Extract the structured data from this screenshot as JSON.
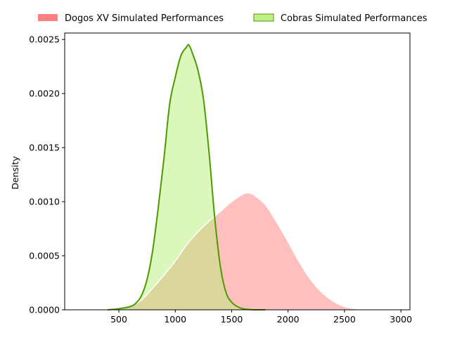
{
  "chart_data": {
    "type": "area",
    "title": "",
    "xlabel": "",
    "ylabel": "Density",
    "xlim": [
      20,
      3080
    ],
    "ylim": [
      0,
      0.00256
    ],
    "x_ticks": [
      500,
      1000,
      1500,
      2000,
      2500,
      3000
    ],
    "y_ticks": [
      0.0,
      0.0005,
      0.001,
      0.0015,
      0.002,
      0.0025
    ],
    "x_tick_labels": [
      "500",
      "1000",
      "1500",
      "2000",
      "2500",
      "3000"
    ],
    "y_tick_labels": [
      "0.0000",
      "0.0005",
      "0.0010",
      "0.0015",
      "0.0020",
      "0.0025"
    ],
    "grid": false,
    "legend_position": "top, outside plot",
    "series": [
      {
        "name": "Dogos XV Simulated Performances",
        "fill_color": "#ff8080",
        "fill_opacity": 0.5,
        "line_color": "#ffffff",
        "x": [
          350,
          500,
          600,
          700,
          800,
          900,
          1000,
          1100,
          1200,
          1300,
          1400,
          1500,
          1600,
          1650,
          1700,
          1800,
          1900,
          2000,
          2100,
          2200,
          2300,
          2400,
          2500,
          2600,
          2700
        ],
        "y": [
          0.0,
          1e-05,
          3e-05,
          9e-05,
          0.0002,
          0.00032,
          0.00045,
          0.0006,
          0.00072,
          0.00082,
          0.00091,
          0.001,
          0.00107,
          0.00108,
          0.00106,
          0.00097,
          0.00081,
          0.00063,
          0.00044,
          0.00028,
          0.00016,
          8e-05,
          3e-05,
          1e-05,
          0.0
        ]
      },
      {
        "name": "Cobras Simulated Performances",
        "fill_color": "#b7f07a",
        "fill_opacity": 0.5,
        "line_color": "#4c9a00",
        "x": [
          400,
          500,
          600,
          650,
          700,
          750,
          800,
          850,
          900,
          950,
          1000,
          1050,
          1100,
          1120,
          1150,
          1200,
          1250,
          1300,
          1350,
          1400,
          1450,
          1500,
          1550,
          1600,
          1700,
          1800
        ],
        "y": [
          0.0,
          1e-05,
          3e-05,
          6e-05,
          0.00013,
          0.00028,
          0.00055,
          0.00095,
          0.0014,
          0.0019,
          0.00215,
          0.00235,
          0.00243,
          0.00245,
          0.00238,
          0.00222,
          0.00195,
          0.00145,
          0.00085,
          0.0004,
          0.00016,
          7e-05,
          3e-05,
          1e-05,
          0.0,
          0.0
        ]
      }
    ]
  }
}
